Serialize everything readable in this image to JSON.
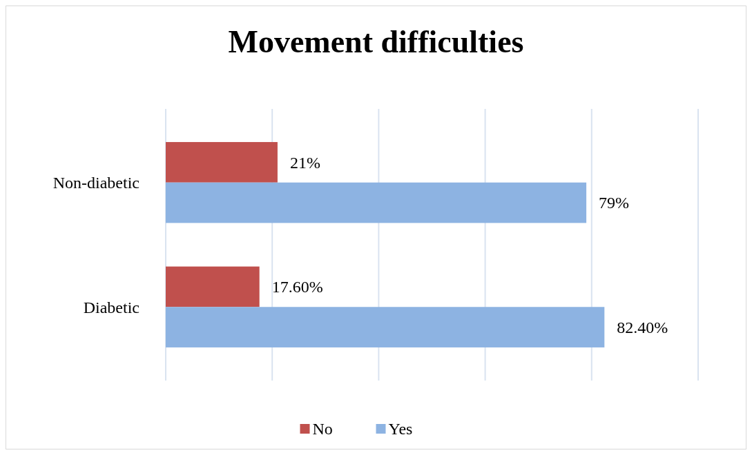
{
  "chart_data": {
    "type": "bar",
    "title": "Movement difficulties",
    "orientation": "horizontal",
    "categories": [
      "Non-diabetic",
      "Diabetic"
    ],
    "series": [
      {
        "name": "No",
        "color": "#c0504d",
        "values": [
          21,
          17.6
        ],
        "value_labels": [
          "21%",
          "17.60%"
        ]
      },
      {
        "name": "Yes",
        "color": "#8db3e2",
        "values": [
          79,
          82.4
        ],
        "value_labels": [
          "79%",
          "82.40%"
        ]
      }
    ],
    "xlim": [
      0,
      100
    ],
    "xticks": [
      {
        "value": 0,
        "label": null
      },
      {
        "value": 20,
        "label": null
      },
      {
        "value": 40,
        "label": null
      },
      {
        "value": 60,
        "label": null
      },
      {
        "value": 80,
        "label": null
      },
      {
        "value": 100,
        "label": null
      }
    ],
    "grid": "x",
    "tick_labels": "y",
    "legend": "bottom"
  }
}
